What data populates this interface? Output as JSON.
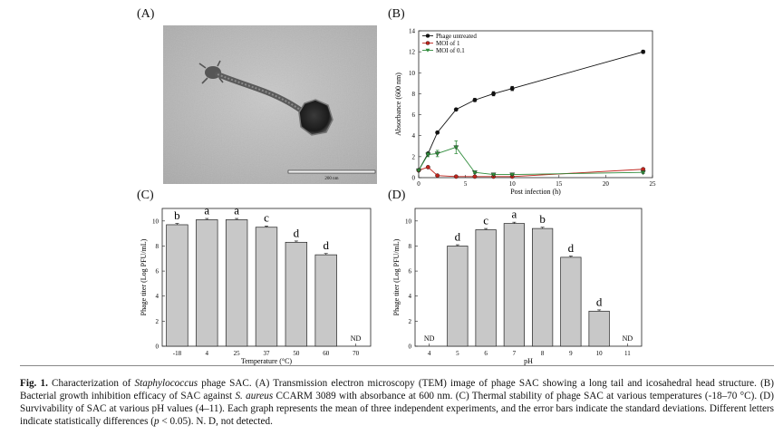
{
  "panels": {
    "a": "(A)",
    "b": "(B)",
    "c": "(C)",
    "d": "(D)"
  },
  "tem": {
    "scale_label": "200 nm"
  },
  "chart_data": [
    {
      "id": "B",
      "type": "line",
      "xlabel": "Post infection (h)",
      "ylabel": "Absorbance (600 nm)",
      "xlim": [
        0,
        25
      ],
      "ylim": [
        0,
        14
      ],
      "xticks": [
        0,
        5,
        10,
        15,
        20,
        25
      ],
      "yticks": [
        0,
        2,
        4,
        6,
        8,
        10,
        12,
        14
      ],
      "legend": "top-left",
      "series": [
        {
          "name": "Phage untreated",
          "color": "#111111",
          "marker": "circle",
          "x": [
            0,
            1,
            2,
            4,
            6,
            8,
            10,
            24
          ],
          "y": [
            0.7,
            2.3,
            4.3,
            6.5,
            7.4,
            8.0,
            8.5,
            12.0
          ],
          "err": [
            0.05,
            0.1,
            0.1,
            0.1,
            0.15,
            0.2,
            0.2,
            0.15
          ]
        },
        {
          "name": "MOI of 1",
          "color": "#c0241c",
          "marker": "circle",
          "x": [
            0,
            1,
            2,
            4,
            6,
            8,
            10,
            24
          ],
          "y": [
            0.7,
            1.0,
            0.2,
            0.1,
            0.1,
            0.1,
            0.1,
            0.8
          ],
          "err": [
            0.05,
            0.1,
            0.05,
            0.05,
            0.05,
            0.05,
            0.05,
            0.1
          ]
        },
        {
          "name": "MOI of 0.1",
          "color": "#2e8b3a",
          "marker": "triangle",
          "x": [
            0,
            1,
            2,
            4,
            6,
            8,
            10,
            24
          ],
          "y": [
            0.7,
            2.2,
            2.3,
            2.9,
            0.5,
            0.3,
            0.3,
            0.5
          ],
          "err": [
            0.05,
            0.2,
            0.3,
            0.6,
            0.1,
            0.05,
            0.05,
            0.1
          ]
        }
      ]
    },
    {
      "id": "C",
      "type": "bar",
      "xlabel": "Temperature (°C)",
      "ylabel": "Phage titer (Log PFU/mL)",
      "ylim": [
        0,
        11
      ],
      "yticks": [
        0,
        2,
        4,
        6,
        8,
        10
      ],
      "categories": [
        "-18",
        "4",
        "25",
        "37",
        "50",
        "60",
        "70"
      ],
      "values": [
        9.7,
        10.1,
        10.1,
        9.5,
        8.3,
        7.3,
        null
      ],
      "letters": [
        "b",
        "a",
        "a",
        "c",
        "d",
        "d",
        "ND"
      ],
      "bar_color": "#c8c8c8"
    },
    {
      "id": "D",
      "type": "bar",
      "xlabel": "pH",
      "ylabel": "Phage titer (Log PFU/mL)",
      "ylim": [
        0,
        11
      ],
      "yticks": [
        0,
        2,
        4,
        6,
        8,
        10
      ],
      "categories": [
        "4",
        "5",
        "6",
        "7",
        "8",
        "9",
        "10",
        "11"
      ],
      "values": [
        null,
        8.0,
        9.3,
        9.8,
        9.4,
        7.1,
        2.8,
        null
      ],
      "letters": [
        "ND",
        "d",
        "c",
        "a",
        "b",
        "d",
        "d",
        "ND"
      ],
      "bar_color": "#c8c8c8"
    }
  ],
  "caption": {
    "fig": "Fig. 1.",
    "t1": " Characterization of ",
    "species": "Staphylococcus",
    "t2": " phage SAC. (A) Transmission electron microscopy (TEM) image of phage SAC showing a long tail and icosahedral head structure. (B) Bacterial growth inhibition efficacy of SAC against ",
    "species2": "S. aureus",
    "t3": " CCARM 3089 with absorbance at 600 nm. (C) Thermal stability of phage SAC at various temperatures (-18–70 °C). (D) Survivability of SAC at various pH values (4–11). Each graph represents the mean of three independent experiments, and the error bars indicate the standard deviations. Different letters indicate statistically differences (",
    "p": "p",
    "t4": " < 0.05). N. D, not detected."
  }
}
